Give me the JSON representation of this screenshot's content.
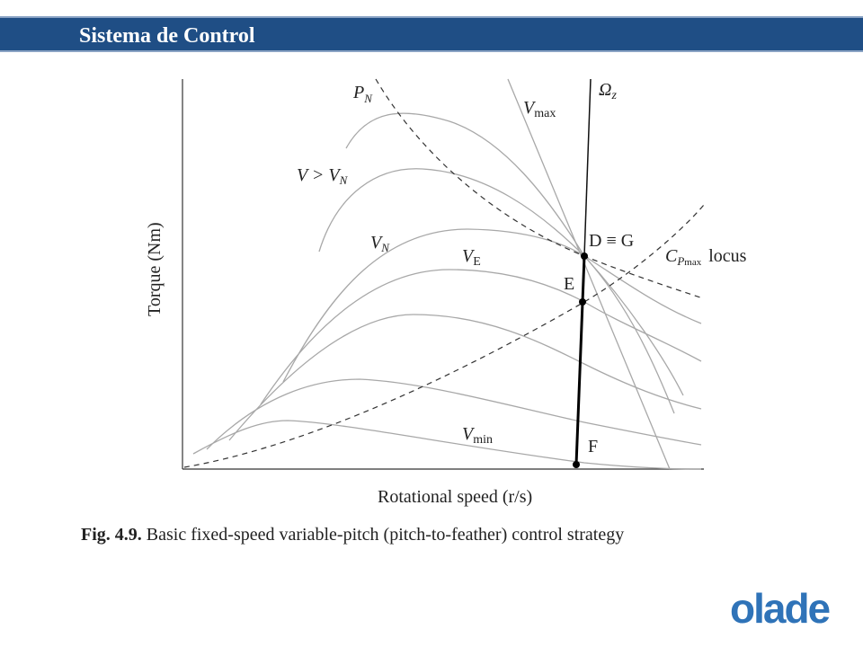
{
  "header": {
    "title": "Sistema de Control"
  },
  "figure": {
    "y_axis_label": "Torque (Nm)",
    "x_axis_label": "Rotational speed (r/s)",
    "curve_labels": {
      "p_n": "P",
      "p_n_sub": "N",
      "v_max": "V",
      "v_max_sub": "max",
      "v_gt_vn": "V > V",
      "v_gt_vn_sub": "N",
      "v_n": "V",
      "v_n_sub": "N",
      "v_e": "V",
      "v_e_sub": "E",
      "v_min": "V",
      "v_min_sub": "min",
      "omega_z": "Ω",
      "omega_z_sub": "z",
      "cp_locus": "C",
      "cp_locus_sub": "P",
      "cp_locus_subsub": "max",
      "cp_locus_word": "locus"
    },
    "point_labels": {
      "dg": "D ≡ G",
      "e": "E",
      "f": "F"
    }
  },
  "caption": {
    "prefix": "Fig. 4.9.",
    "text": "Basic fixed-speed variable-pitch (pitch-to-feather) control strategy"
  },
  "logo": {
    "text": "olade"
  }
}
